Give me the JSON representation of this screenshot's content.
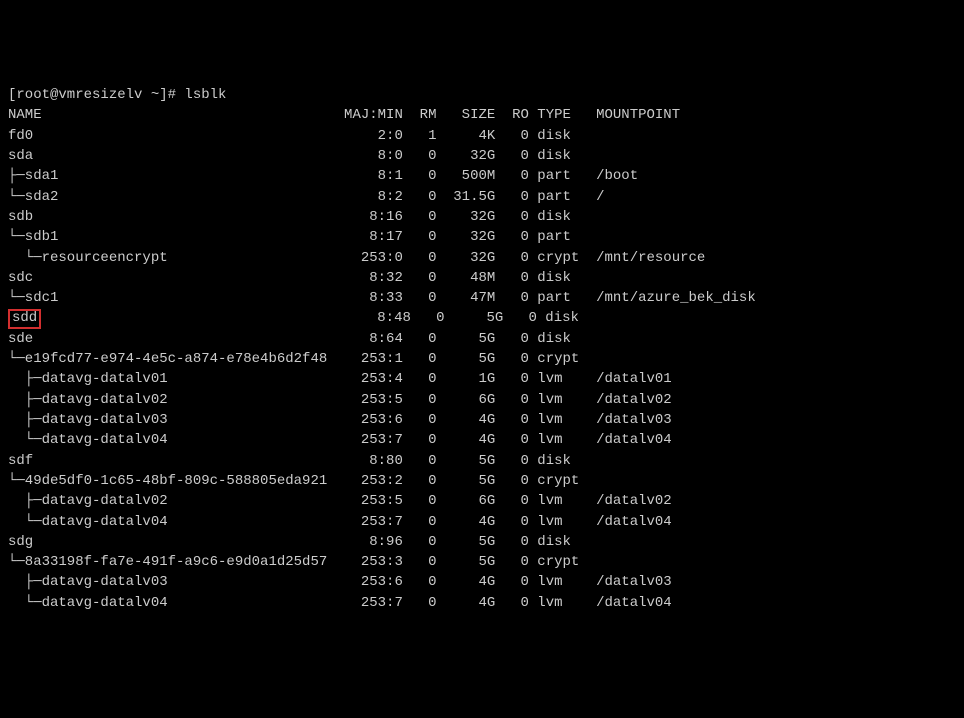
{
  "terminal": {
    "prompt": "[root@vmresizelv ~]# lsblk",
    "headers": {
      "name": "NAME",
      "majmin": "MAJ:MIN",
      "rm": "RM",
      "size": "SIZE",
      "ro": "RO",
      "type": "TYPE",
      "mountpoint": "MOUNTPOINT"
    },
    "rows": [
      {
        "name": "fd0",
        "indent": "",
        "majmin": "2:0",
        "rm": "1",
        "size": "4K",
        "ro": "0",
        "type": "disk",
        "mountpoint": ""
      },
      {
        "name": "sda",
        "indent": "",
        "majmin": "8:0",
        "rm": "0",
        "size": "32G",
        "ro": "0",
        "type": "disk",
        "mountpoint": ""
      },
      {
        "name": "sda1",
        "indent": "├─",
        "majmin": "8:1",
        "rm": "0",
        "size": "500M",
        "ro": "0",
        "type": "part",
        "mountpoint": "/boot"
      },
      {
        "name": "sda2",
        "indent": "└─",
        "majmin": "8:2",
        "rm": "0",
        "size": "31.5G",
        "ro": "0",
        "type": "part",
        "mountpoint": "/"
      },
      {
        "name": "sdb",
        "indent": "",
        "majmin": "8:16",
        "rm": "0",
        "size": "32G",
        "ro": "0",
        "type": "disk",
        "mountpoint": ""
      },
      {
        "name": "sdb1",
        "indent": "└─",
        "majmin": "8:17",
        "rm": "0",
        "size": "32G",
        "ro": "0",
        "type": "part",
        "mountpoint": ""
      },
      {
        "name": "resourceencrypt",
        "indent": "  └─",
        "majmin": "253:0",
        "rm": "0",
        "size": "32G",
        "ro": "0",
        "type": "crypt",
        "mountpoint": "/mnt/resource"
      },
      {
        "name": "sdc",
        "indent": "",
        "majmin": "8:32",
        "rm": "0",
        "size": "48M",
        "ro": "0",
        "type": "disk",
        "mountpoint": ""
      },
      {
        "name": "sdc1",
        "indent": "└─",
        "majmin": "8:33",
        "rm": "0",
        "size": "47M",
        "ro": "0",
        "type": "part",
        "mountpoint": "/mnt/azure_bek_disk"
      },
      {
        "name": "sdd",
        "indent": "",
        "majmin": "8:48",
        "rm": "0",
        "size": "5G",
        "ro": "0",
        "type": "disk",
        "mountpoint": "",
        "highlight": true
      },
      {
        "name": "sde",
        "indent": "",
        "majmin": "8:64",
        "rm": "0",
        "size": "5G",
        "ro": "0",
        "type": "disk",
        "mountpoint": ""
      },
      {
        "name": "e19fcd77-e974-4e5c-a874-e78e4b6d2f48",
        "indent": "└─",
        "majmin": "253:1",
        "rm": "0",
        "size": "5G",
        "ro": "0",
        "type": "crypt",
        "mountpoint": ""
      },
      {
        "name": "datavg-datalv01",
        "indent": "  ├─",
        "majmin": "253:4",
        "rm": "0",
        "size": "1G",
        "ro": "0",
        "type": "lvm",
        "mountpoint": "/datalv01"
      },
      {
        "name": "datavg-datalv02",
        "indent": "  ├─",
        "majmin": "253:5",
        "rm": "0",
        "size": "6G",
        "ro": "0",
        "type": "lvm",
        "mountpoint": "/datalv02"
      },
      {
        "name": "datavg-datalv03",
        "indent": "  ├─",
        "majmin": "253:6",
        "rm": "0",
        "size": "4G",
        "ro": "0",
        "type": "lvm",
        "mountpoint": "/datalv03"
      },
      {
        "name": "datavg-datalv04",
        "indent": "  └─",
        "majmin": "253:7",
        "rm": "0",
        "size": "4G",
        "ro": "0",
        "type": "lvm",
        "mountpoint": "/datalv04"
      },
      {
        "name": "sdf",
        "indent": "",
        "majmin": "8:80",
        "rm": "0",
        "size": "5G",
        "ro": "0",
        "type": "disk",
        "mountpoint": ""
      },
      {
        "name": "49de5df0-1c65-48bf-809c-588805eda921",
        "indent": "└─",
        "majmin": "253:2",
        "rm": "0",
        "size": "5G",
        "ro": "0",
        "type": "crypt",
        "mountpoint": ""
      },
      {
        "name": "datavg-datalv02",
        "indent": "  ├─",
        "majmin": "253:5",
        "rm": "0",
        "size": "6G",
        "ro": "0",
        "type": "lvm",
        "mountpoint": "/datalv02"
      },
      {
        "name": "datavg-datalv04",
        "indent": "  └─",
        "majmin": "253:7",
        "rm": "0",
        "size": "4G",
        "ro": "0",
        "type": "lvm",
        "mountpoint": "/datalv04"
      },
      {
        "name": "sdg",
        "indent": "",
        "majmin": "8:96",
        "rm": "0",
        "size": "5G",
        "ro": "0",
        "type": "disk",
        "mountpoint": ""
      },
      {
        "name": "8a33198f-fa7e-491f-a9c6-e9d0a1d25d57",
        "indent": "└─",
        "majmin": "253:3",
        "rm": "0",
        "size": "5G",
        "ro": "0",
        "type": "crypt",
        "mountpoint": ""
      },
      {
        "name": "datavg-datalv03",
        "indent": "  ├─",
        "majmin": "253:6",
        "rm": "0",
        "size": "4G",
        "ro": "0",
        "type": "lvm",
        "mountpoint": "/datalv03"
      },
      {
        "name": "datavg-datalv04",
        "indent": "  └─",
        "majmin": "253:7",
        "rm": "0",
        "size": "4G",
        "ro": "0",
        "type": "lvm",
        "mountpoint": "/datalv04"
      }
    ],
    "columns": {
      "name_width": 40,
      "majmin_width": 7,
      "rm_width": 3,
      "size_width": 6,
      "ro_width": 3,
      "type_width": 6
    },
    "colors": {
      "background": "#000000",
      "text": "#cccccc",
      "highlight_border": "#d32f2f"
    }
  }
}
